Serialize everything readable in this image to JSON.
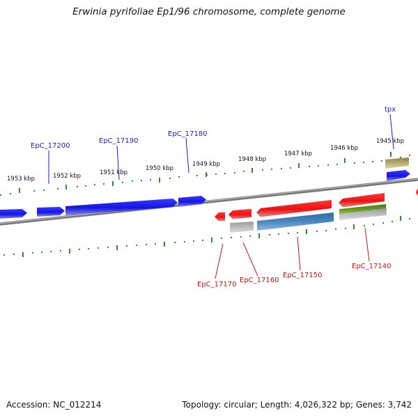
{
  "title": "Erwinia pyrifoliae Ep1/96 chromosome, complete genome",
  "accession": "Accession: NC_012214",
  "topology": "Topology: circular; Length: 4,026,322 bp; Genes: 3,742",
  "ruler": {
    "ticks": [
      {
        "kbp": 1953,
        "label": "1953 kbp"
      },
      {
        "kbp": 1952,
        "label": "1952 kbp"
      },
      {
        "kbp": 1951,
        "label": "1951 kbp"
      },
      {
        "kbp": 1950,
        "label": "1950 kbp"
      },
      {
        "kbp": 1949,
        "label": "1949 kbp"
      },
      {
        "kbp": 1948,
        "label": "1948 kbp"
      },
      {
        "kbp": 1947,
        "label": "1947 kbp"
      },
      {
        "kbp": 1946,
        "label": "1946 kbp"
      },
      {
        "kbp": 1945,
        "label": "1945 kbp"
      }
    ]
  },
  "gene_labels": [
    {
      "name": "EpC_17200",
      "strand": "forward",
      "color": "#1a1ad6"
    },
    {
      "name": "EpC_17190",
      "strand": "forward",
      "color": "#1a1ad6"
    },
    {
      "name": "EpC_17180",
      "strand": "forward",
      "color": "#1a1ad6"
    },
    {
      "name": "tpx",
      "strand": "forward",
      "color": "#1a1ad6"
    },
    {
      "name": "EpC_17170",
      "strand": "reverse",
      "color": "#cc1111"
    },
    {
      "name": "EpC_17160",
      "strand": "reverse",
      "color": "#cc1111"
    },
    {
      "name": "EpC_17150",
      "strand": "reverse",
      "color": "#cc1111"
    },
    {
      "name": "EpC_17140",
      "strand": "reverse",
      "color": "#cc1111"
    }
  ],
  "colors": {
    "forward_gene": "#1414e6",
    "reverse_gene": "#ee1111",
    "backbone": "#8a8a8a",
    "ruler": "#2e8b2e",
    "cds_grey": "#b0b0b0",
    "cds_olive": "#b4ad6e",
    "cds_green": "#6a9a20",
    "cds_steelblue": "#4a86c0"
  }
}
